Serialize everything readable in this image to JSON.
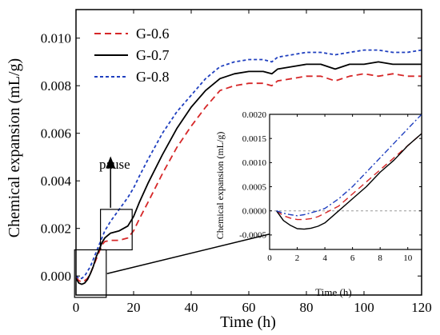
{
  "chart_data": [
    {
      "type": "line",
      "title": "",
      "xlabel": "Time (h)",
      "ylabel": "Chemical expansion (mL/g)",
      "xlim": [
        0,
        120
      ],
      "ylim": [
        -0.0008,
        0.0112
      ],
      "x_ticks": [
        0,
        20,
        40,
        60,
        80,
        100,
        120
      ],
      "y_ticks": [
        0.0,
        0.002,
        0.004,
        0.006,
        0.008,
        0.01
      ],
      "x_tick_labels": [
        "0",
        "20",
        "40",
        "60",
        "80",
        "100",
        "120"
      ],
      "y_tick_labels": [
        "0.000",
        "0.002",
        "0.004",
        "0.006",
        "0.008",
        "0.010"
      ],
      "grid": false,
      "legend": "top-left",
      "annotation": "pause",
      "series": [
        {
          "name": "G-0.6",
          "color": "#d62728",
          "dash": "dashed",
          "x": [
            0,
            1,
            2,
            3,
            4,
            5,
            6,
            7,
            8,
            9,
            10,
            12,
            15,
            18,
            20,
            22,
            25,
            30,
            35,
            40,
            45,
            50,
            55,
            60,
            65,
            68,
            70,
            75,
            80,
            85,
            90,
            95,
            100,
            105,
            110,
            115,
            120
          ],
          "y": [
            -5e-05,
            -0.0002,
            -0.00025,
            -0.0002,
            -0.0001,
            0.0001,
            0.0004,
            0.0007,
            0.001,
            0.0013,
            0.00145,
            0.0015,
            0.0015,
            0.0016,
            0.0019,
            0.0024,
            0.0031,
            0.0043,
            0.0054,
            0.0063,
            0.0071,
            0.0078,
            0.008,
            0.0081,
            0.0081,
            0.008,
            0.0082,
            0.0083,
            0.0084,
            0.0084,
            0.0082,
            0.0084,
            0.0085,
            0.0084,
            0.0085,
            0.0084,
            0.0084
          ]
        },
        {
          "name": "G-0.7",
          "color": "#000000",
          "dash": "solid",
          "x": [
            0,
            1,
            2,
            3,
            4,
            5,
            6,
            7,
            8,
            9,
            10,
            12,
            15,
            18,
            20,
            22,
            25,
            30,
            35,
            40,
            45,
            50,
            55,
            60,
            65,
            68,
            70,
            75,
            80,
            85,
            90,
            95,
            100,
            105,
            110,
            115,
            120
          ],
          "y": [
            -0.0001,
            -0.0003,
            -0.00035,
            -0.0003,
            -0.00015,
            0.0001,
            0.0004,
            0.0008,
            0.0011,
            0.0014,
            0.0016,
            0.0018,
            0.0019,
            0.0021,
            0.0025,
            0.0031,
            0.0039,
            0.0051,
            0.0062,
            0.0071,
            0.0078,
            0.0083,
            0.0085,
            0.0086,
            0.0086,
            0.0085,
            0.0087,
            0.0088,
            0.0089,
            0.0089,
            0.0087,
            0.0089,
            0.0089,
            0.009,
            0.0089,
            0.0089,
            0.0089
          ]
        },
        {
          "name": "G-0.8",
          "color": "#1f3fbf",
          "dash": "dotted",
          "x": [
            0,
            1,
            2,
            3,
            4,
            5,
            6,
            7,
            8,
            9,
            10,
            12,
            15,
            18,
            20,
            22,
            25,
            30,
            35,
            40,
            45,
            50,
            55,
            60,
            65,
            68,
            70,
            75,
            80,
            85,
            90,
            95,
            100,
            105,
            110,
            115,
            120
          ],
          "y": [
            0.0,
            -0.0001,
            -0.0001,
            0.0,
            0.0002,
            0.0004,
            0.0007,
            0.001,
            0.0013,
            0.0016,
            0.0019,
            0.0023,
            0.0028,
            0.0033,
            0.0037,
            0.0042,
            0.0049,
            0.006,
            0.0069,
            0.0076,
            0.0083,
            0.0088,
            0.009,
            0.0091,
            0.0091,
            0.009,
            0.0092,
            0.0093,
            0.0094,
            0.0094,
            0.0093,
            0.0094,
            0.0095,
            0.0095,
            0.0094,
            0.0094,
            0.0095
          ]
        }
      ]
    },
    {
      "type": "line",
      "title": "",
      "xlabel": "Time (h)",
      "ylabel": "Chemical expansion (mL/g)",
      "xlim": [
        0,
        11
      ],
      "ylim": [
        -0.0008,
        0.002
      ],
      "x_ticks": [
        0,
        2,
        4,
        6,
        8,
        10
      ],
      "y_ticks": [
        -0.0005,
        0.0,
        0.0005,
        0.001,
        0.0015,
        0.002
      ],
      "x_tick_labels": [
        "0",
        "2",
        "4",
        "6",
        "8",
        "10"
      ],
      "y_tick_labels": [
        "-0.0005",
        "0.0000",
        "0.0005",
        "0.0010",
        "0.0015",
        "0.0020"
      ],
      "grid": false,
      "reference_line_y": 0,
      "series": [
        {
          "name": "G-0.6",
          "color": "#d62728",
          "dash": "dashed",
          "x": [
            0.5,
            1,
            1.5,
            2,
            2.5,
            3,
            3.5,
            4,
            5,
            6,
            7,
            8,
            9,
            10,
            11
          ],
          "y": [
            0.0,
            -0.0001,
            -0.00015,
            -0.00018,
            -0.00018,
            -0.00016,
            -0.00012,
            -5e-05,
            0.0001,
            0.00035,
            0.0006,
            0.00085,
            0.0011,
            0.00135,
            0.0016
          ]
        },
        {
          "name": "G-0.7",
          "color": "#000000",
          "dash": "solid",
          "x": [
            0.5,
            1,
            1.5,
            2,
            2.5,
            3,
            3.5,
            4,
            5,
            6,
            7,
            8,
            9,
            10,
            11
          ],
          "y": [
            0.0,
            -0.0002,
            -0.0003,
            -0.00037,
            -0.00038,
            -0.00036,
            -0.00032,
            -0.00025,
            0.0,
            0.00025,
            0.0005,
            0.0008,
            0.00105,
            0.00135,
            0.0016
          ]
        },
        {
          "name": "G-0.8",
          "color": "#1f3fbf",
          "dash": "dashdot",
          "x": [
            0.5,
            1,
            1.5,
            2,
            2.5,
            3,
            3.5,
            4,
            5,
            6,
            7,
            8,
            9,
            10,
            11
          ],
          "y": [
            0.0,
            -5e-05,
            -8e-05,
            -0.0001,
            -8e-05,
            -4e-05,
            0.0,
            5e-05,
            0.00025,
            0.0005,
            0.0008,
            0.0011,
            0.0014,
            0.0017,
            0.002
          ]
        }
      ]
    }
  ]
}
